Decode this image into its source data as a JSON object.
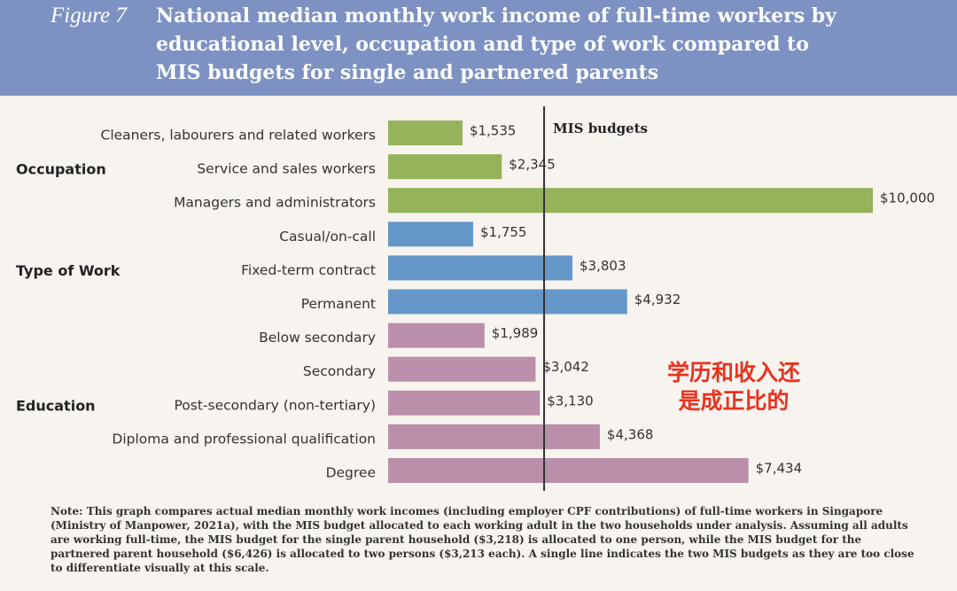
{
  "chart_data": {
    "type": "bar",
    "orientation": "horizontal",
    "figure_label": "Figure 7",
    "title": "National median monthly work income of full-time workers by educational level, occupation and type of work compared to MIS budgets for single and partnered parents",
    "xlim": [
      0,
      10000
    ],
    "groups": [
      {
        "name": "Occupation",
        "color": "#94b35a",
        "categories": [
          "Cleaners, labourers and related workers",
          "Service and sales workers",
          "Managers and administrators"
        ],
        "values": [
          1535,
          2345,
          10000
        ],
        "value_labels": [
          "$1,535",
          "$2,345",
          "$10,000"
        ]
      },
      {
        "name": "Type of Work",
        "color": "#6598c9",
        "categories": [
          "Casual/on-call",
          "Fixed-term contract",
          "Permanent"
        ],
        "values": [
          1755,
          3803,
          4932
        ],
        "value_labels": [
          "$1,755",
          "$3,803",
          "$4,932"
        ]
      },
      {
        "name": "Education",
        "color": "#b98fa9",
        "categories": [
          "Below secondary",
          "Secondary",
          "Post-secondary (non-tertiary)",
          "Diploma and professional qualification",
          "Degree"
        ],
        "values": [
          1989,
          3042,
          3130,
          4368,
          7434
        ],
        "value_labels": [
          "$1,989",
          "$3,042",
          "$3,130",
          "$4,368",
          "$7,434"
        ]
      }
    ],
    "reference_line": {
      "label": "MIS budgets",
      "value": 3218,
      "color": "#333333"
    },
    "annotation": [
      "学历和收入还",
      "是成正比的"
    ],
    "note": "Note: This graph compares actual median monthly work incomes (including employer CPF contributions) of full-time workers in Singapore (Ministry of Manpower, 2021a), with the MIS budget allocated to each working adult in the two households under analysis. Assuming all adults are working full-time, the MIS budget for the single parent household ($3,218) is allocated to one person, while the MIS budget for the partnered parent household ($6,426) is allocated to two persons ($3,213 each). A single line indicates the two MIS budgets as they are too close to differentiate visually at this scale."
  }
}
